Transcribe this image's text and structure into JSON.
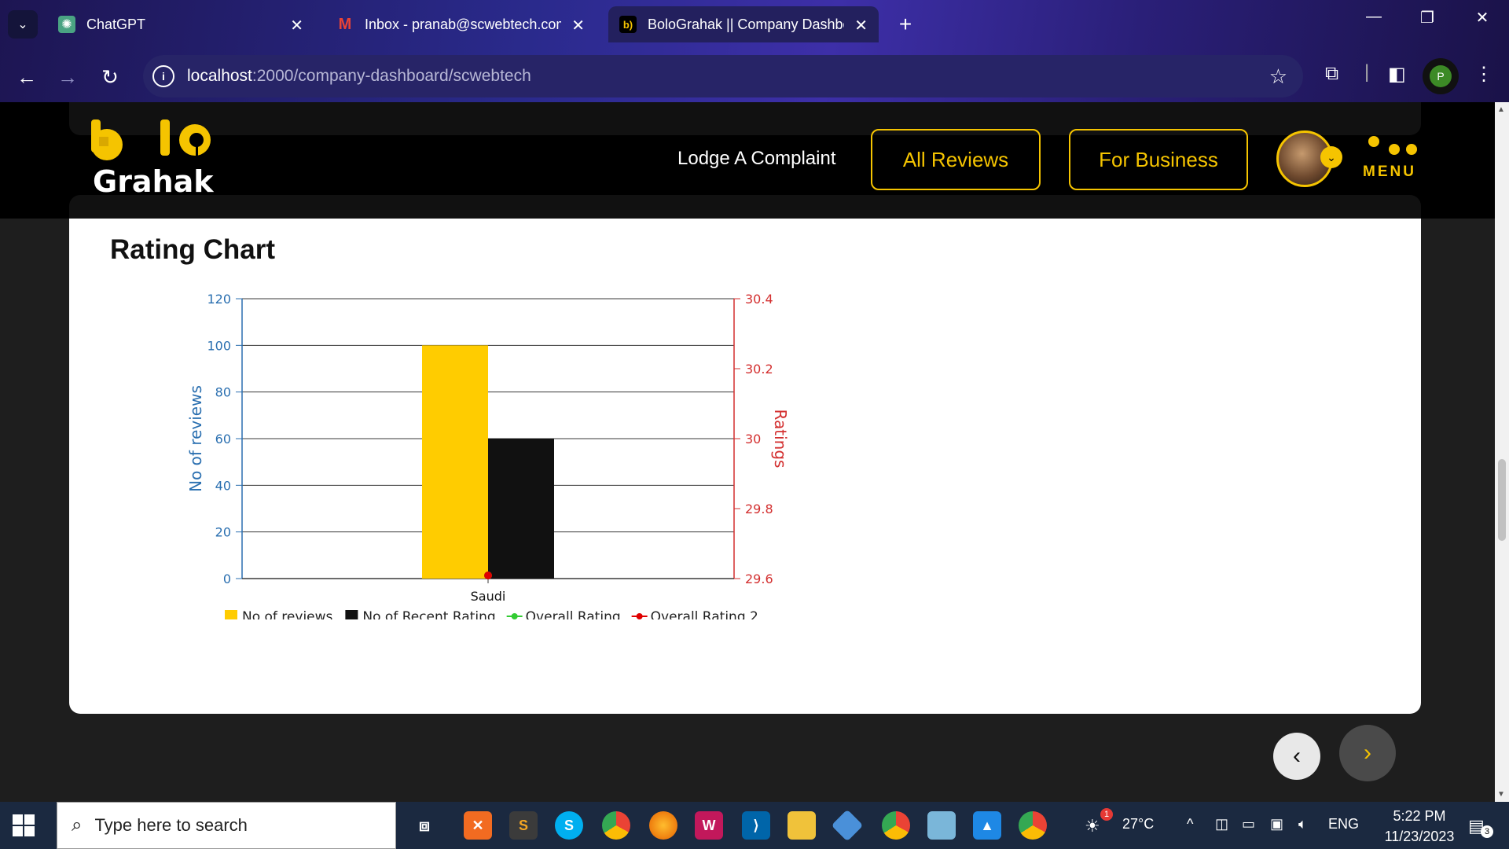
{
  "browser": {
    "tabs": [
      {
        "label": "ChatGPT",
        "favicon": "chatgpt-icon",
        "active": false
      },
      {
        "label": "Inbox - pranab@scwebtech.com",
        "favicon": "gmail-icon",
        "active": false
      },
      {
        "label": "BoloGrahak || Company Dashbo",
        "favicon": "bolograhak-icon",
        "active": true
      }
    ],
    "url_host": "localhost",
    "url_path": ":2000/company-dashboard/scwebtech",
    "profile_initial": "P"
  },
  "header": {
    "logo_top": "b  lo",
    "logo_bottom": "Grahak",
    "nav_link": "Lodge A Complaint",
    "btn_reviews": "All Reviews",
    "btn_business": "For Business",
    "menu_label": "MENU"
  },
  "card": {
    "title": "Rating Chart"
  },
  "chart_data": {
    "type": "bar",
    "categories": [
      "Saudi"
    ],
    "series": [
      {
        "name": "No of reviews",
        "type": "bar",
        "axis": "left",
        "color": "#ffcc00",
        "values": [
          100
        ]
      },
      {
        "name": "No of Recent Rating",
        "type": "bar",
        "axis": "left",
        "color": "#111111",
        "values": [
          60
        ]
      },
      {
        "name": "Overall Rating",
        "type": "line",
        "axis": "right",
        "color": "#33cc33",
        "values": [
          29.6
        ]
      },
      {
        "name": "Overall Rating 2",
        "type": "line",
        "axis": "right",
        "color": "#e00000",
        "values": [
          29.6
        ]
      }
    ],
    "ylabel": "No of reviews",
    "y2label": "Ratings",
    "ylim": [
      0,
      120
    ],
    "y2lim": [
      29.6,
      30.4
    ],
    "yticks": [
      0,
      20,
      40,
      60,
      80,
      100,
      120
    ],
    "y2ticks": [
      29.6,
      29.8,
      30,
      30.2,
      30.4
    ],
    "grid": true,
    "legend": "bottom"
  },
  "taskbar": {
    "search_placeholder": "Type here to search",
    "weather": "27°C",
    "weather_badge": "1",
    "language": "ENG",
    "time": "5:22 PM",
    "date": "11/23/2023",
    "notif_count": "3"
  }
}
